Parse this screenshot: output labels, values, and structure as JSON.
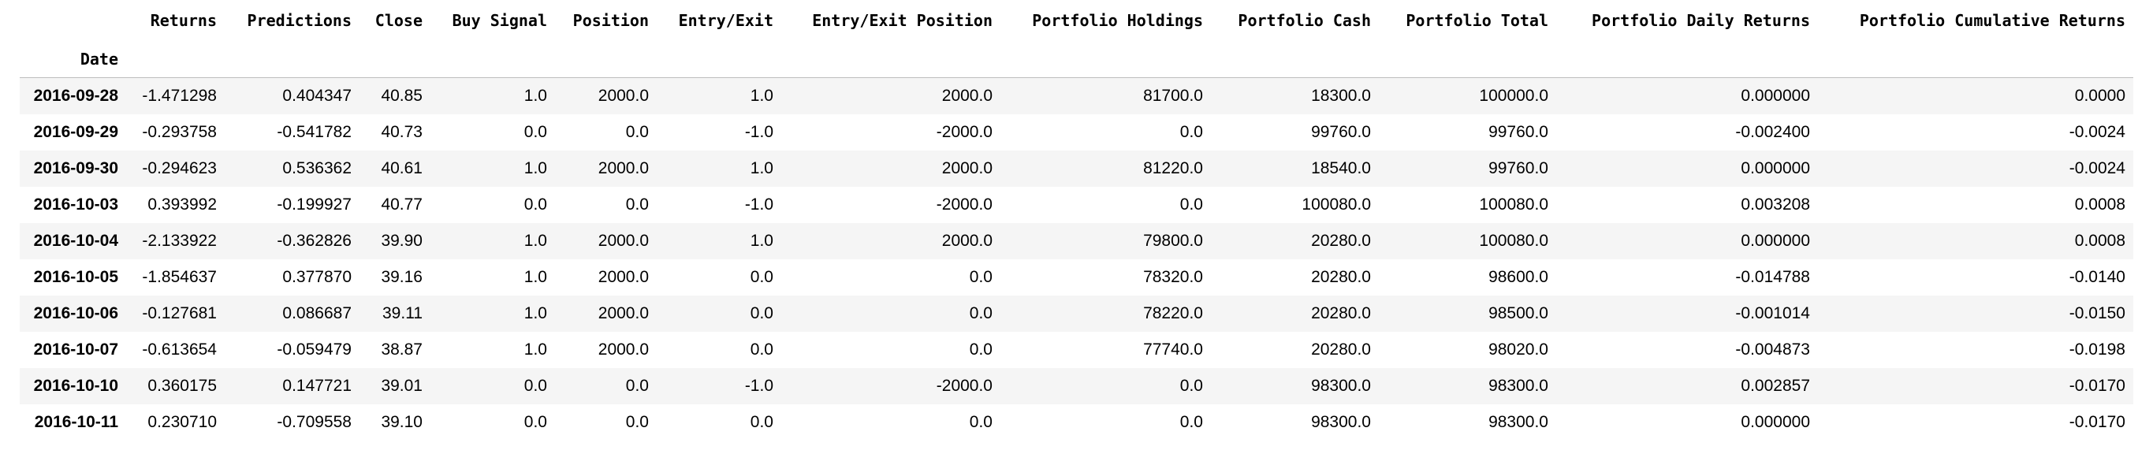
{
  "table": {
    "columns": [
      "Returns",
      "Predictions",
      "Close",
      "Buy Signal",
      "Position",
      "Entry/Exit",
      "Entry/Exit Position",
      "Portfolio Holdings",
      "Portfolio Cash",
      "Portfolio Total",
      "Portfolio Daily Returns",
      "Portfolio Cumulative Returns"
    ],
    "index_name": "Date",
    "rows": [
      {
        "index": "2016-09-28",
        "cells": [
          "-1.471298",
          "0.404347",
          "40.85",
          "1.0",
          "2000.0",
          "1.0",
          "2000.0",
          "81700.0",
          "18300.0",
          "100000.0",
          "0.000000",
          "0.0000"
        ]
      },
      {
        "index": "2016-09-29",
        "cells": [
          "-0.293758",
          "-0.541782",
          "40.73",
          "0.0",
          "0.0",
          "-1.0",
          "-2000.0",
          "0.0",
          "99760.0",
          "99760.0",
          "-0.002400",
          "-0.0024"
        ]
      },
      {
        "index": "2016-09-30",
        "cells": [
          "-0.294623",
          "0.536362",
          "40.61",
          "1.0",
          "2000.0",
          "1.0",
          "2000.0",
          "81220.0",
          "18540.0",
          "99760.0",
          "0.000000",
          "-0.0024"
        ]
      },
      {
        "index": "2016-10-03",
        "cells": [
          "0.393992",
          "-0.199927",
          "40.77",
          "0.0",
          "0.0",
          "-1.0",
          "-2000.0",
          "0.0",
          "100080.0",
          "100080.0",
          "0.003208",
          "0.0008"
        ]
      },
      {
        "index": "2016-10-04",
        "cells": [
          "-2.133922",
          "-0.362826",
          "39.90",
          "1.0",
          "2000.0",
          "1.0",
          "2000.0",
          "79800.0",
          "20280.0",
          "100080.0",
          "0.000000",
          "0.0008"
        ]
      },
      {
        "index": "2016-10-05",
        "cells": [
          "-1.854637",
          "0.377870",
          "39.16",
          "1.0",
          "2000.0",
          "0.0",
          "0.0",
          "78320.0",
          "20280.0",
          "98600.0",
          "-0.014788",
          "-0.0140"
        ]
      },
      {
        "index": "2016-10-06",
        "cells": [
          "-0.127681",
          "0.086687",
          "39.11",
          "1.0",
          "2000.0",
          "0.0",
          "0.0",
          "78220.0",
          "20280.0",
          "98500.0",
          "-0.001014",
          "-0.0150"
        ]
      },
      {
        "index": "2016-10-07",
        "cells": [
          "-0.613654",
          "-0.059479",
          "38.87",
          "1.0",
          "2000.0",
          "0.0",
          "0.0",
          "77740.0",
          "20280.0",
          "98020.0",
          "-0.004873",
          "-0.0198"
        ]
      },
      {
        "index": "2016-10-10",
        "cells": [
          "0.360175",
          "0.147721",
          "39.01",
          "0.0",
          "0.0",
          "-1.0",
          "-2000.0",
          "0.0",
          "98300.0",
          "98300.0",
          "0.002857",
          "-0.0170"
        ]
      },
      {
        "index": "2016-10-11",
        "cells": [
          "0.230710",
          "-0.709558",
          "39.10",
          "0.0",
          "0.0",
          "0.0",
          "0.0",
          "0.0",
          "98300.0",
          "98300.0",
          "0.000000",
          "-0.0170"
        ]
      }
    ]
  }
}
